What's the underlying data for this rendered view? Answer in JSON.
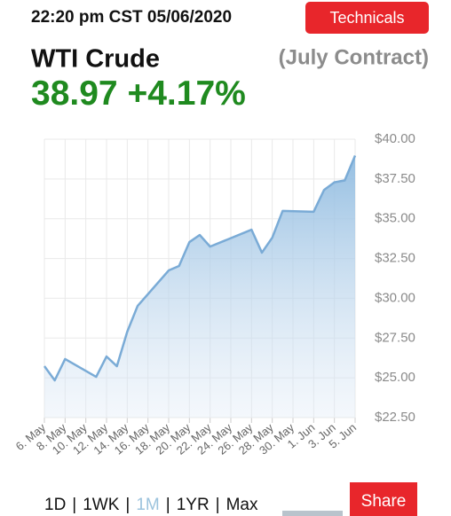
{
  "header": {
    "timestamp": "22:20 pm CST 05/06/2020",
    "button": "Technicals"
  },
  "instrument": {
    "name": "WTI Crude",
    "contract": "(July Contract)",
    "price": "38.97",
    "change": "+4.17%"
  },
  "chart_data": {
    "type": "area",
    "color": "#7aabd6",
    "x": [
      "6. May",
      "7. May",
      "8. May",
      "11. May",
      "12. May",
      "13. May",
      "14. May",
      "15. May",
      "18. May",
      "19. May",
      "20. May",
      "21. May",
      "22. May",
      "26. May",
      "27. May",
      "28. May",
      "29. May",
      "1. Jun",
      "2. Jun",
      "3. Jun",
      "4. Jun",
      "5. Jun"
    ],
    "values": [
      25.73,
      24.84,
      26.18,
      25.06,
      26.34,
      25.73,
      27.9,
      29.52,
      31.75,
      32.03,
      33.53,
      33.98,
      33.25,
      34.31,
      32.87,
      33.81,
      35.49,
      35.44,
      36.81,
      37.29,
      37.41,
      38.97
    ],
    "xticks": [
      "6. May",
      "8. May",
      "10. May",
      "12. May",
      "14. May",
      "16. May",
      "18. May",
      "20. May",
      "22. May",
      "24. May",
      "26. May",
      "28. May",
      "30. May",
      "1. Jun",
      "3. Jun",
      "5. Jun"
    ],
    "ylim": [
      22.5,
      40
    ],
    "yticks": [
      {
        "value": 40,
        "label": "$40.00"
      },
      {
        "value": 37.5,
        "label": "$37.50"
      },
      {
        "value": 35,
        "label": "$35.00"
      },
      {
        "value": 32.5,
        "label": "$32.50"
      },
      {
        "value": 30,
        "label": "$30.00"
      },
      {
        "value": 27.5,
        "label": "$27.50"
      },
      {
        "value": 25,
        "label": "$25.00"
      },
      {
        "value": 22.5,
        "label": "$22.50"
      }
    ],
    "grid": true
  },
  "range_selector": {
    "options": [
      "1D",
      "1WK",
      "1M",
      "1YR",
      "Max"
    ],
    "separator": "|",
    "selected": 2
  },
  "share_button": "Share"
}
